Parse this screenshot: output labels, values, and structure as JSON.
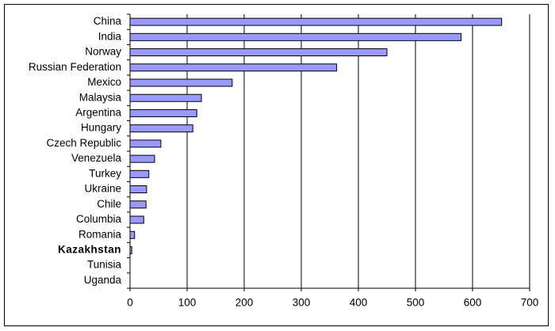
{
  "chart_data": {
    "type": "bar",
    "orientation": "horizontal",
    "categories": [
      "China",
      "India",
      "Norway",
      "Russian Federation",
      "Mexico",
      "Malaysia",
      "Argentina",
      "Hungary",
      "Czech Republic",
      "Venezuela",
      "Turkey",
      "Ukraine",
      "Chile",
      "Columbia",
      "Romania",
      "Kazakhstan",
      "Tunisia",
      "Uganda"
    ],
    "values": [
      651,
      580,
      450,
      362,
      179,
      125,
      117,
      110,
      54,
      43,
      33,
      29,
      28,
      24,
      8,
      3,
      0,
      0
    ],
    "color": "#9999ff",
    "emphasis": "Kazakhstan",
    "xlim": [
      0,
      700
    ],
    "xticks": [
      0,
      100,
      200,
      300,
      400,
      500,
      600,
      700
    ],
    "grid": true
  }
}
